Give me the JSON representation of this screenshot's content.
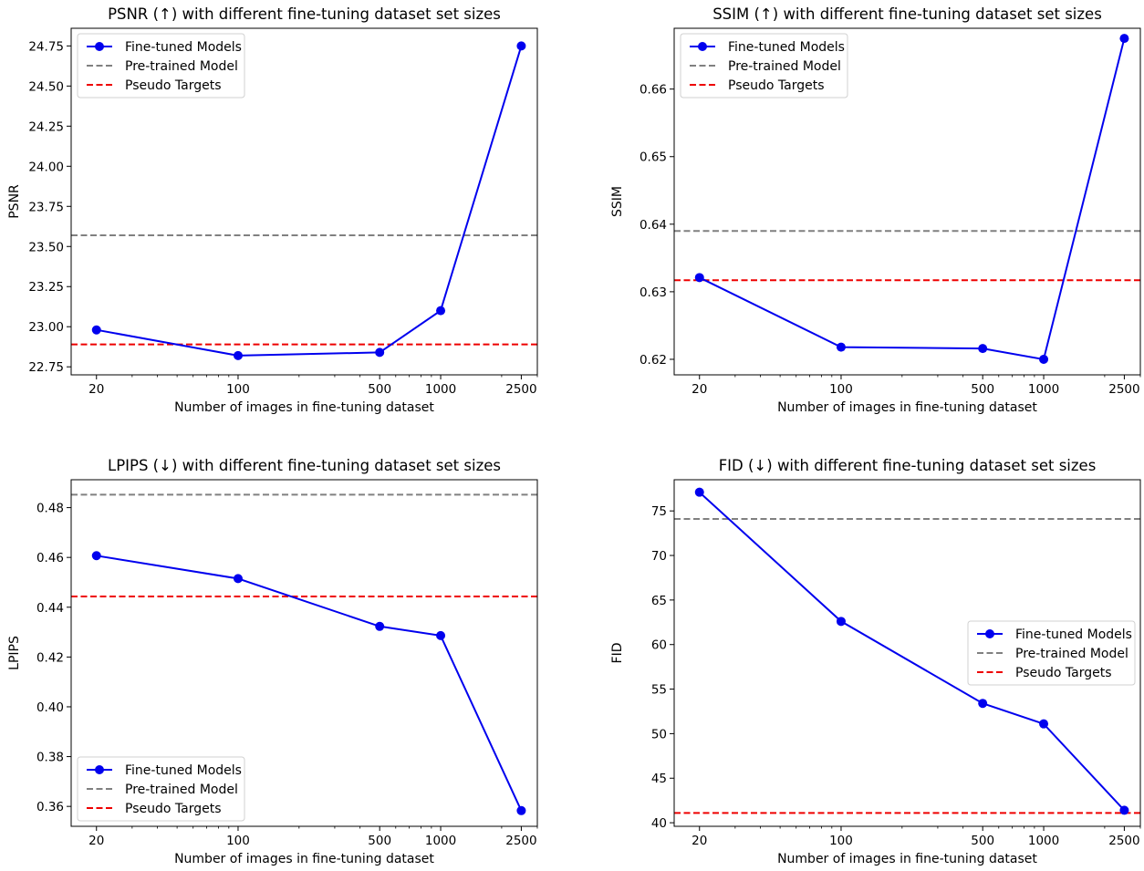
{
  "x_values": [
    20,
    100,
    500,
    1000,
    2500
  ],
  "x_tick_labels": [
    "20",
    "100",
    "500",
    "1000",
    "2500"
  ],
  "legend_labels": [
    "Fine-tuned Models",
    "Pre-trained Model",
    "Pseudo Targets"
  ],
  "colors": {
    "fine_tuned": "#0000ee",
    "pretrained": "#808080",
    "pseudo": "#ee0000"
  },
  "chart_data": [
    {
      "type": "line",
      "title": "PSNR (↑) with different fine-tuning dataset set sizes",
      "xlabel": "Number of images in fine-tuning dataset",
      "ylabel": "PSNR",
      "xscale": "log",
      "xlim": [
        15,
        3000
      ],
      "ylim": [
        22.7,
        24.86
      ],
      "yticks": [
        22.75,
        23.0,
        23.25,
        23.5,
        23.75,
        24.0,
        24.25,
        24.5,
        24.75
      ],
      "ytick_decimals": 2,
      "series": [
        {
          "name": "Fine-tuned Models",
          "x": [
            20,
            100,
            500,
            1000,
            2500
          ],
          "values": [
            22.98,
            22.82,
            22.84,
            23.1,
            24.75
          ]
        }
      ],
      "hlines": [
        {
          "name": "Pre-trained Model",
          "value": 23.57
        },
        {
          "name": "Pseudo Targets",
          "value": 22.89
        }
      ],
      "legend": "upper-left"
    },
    {
      "type": "line",
      "title": "SSIM (↑) with different fine-tuning dataset set sizes",
      "xlabel": "Number of images in fine-tuning dataset",
      "ylabel": "SSIM",
      "xscale": "log",
      "xlim": [
        15,
        3000
      ],
      "ylim": [
        0.6177,
        0.669
      ],
      "yticks": [
        0.62,
        0.63,
        0.64,
        0.65,
        0.66
      ],
      "ytick_decimals": 2,
      "series": [
        {
          "name": "Fine-tuned Models",
          "x": [
            20,
            100,
            500,
            1000,
            2500
          ],
          "values": [
            0.6321,
            0.6218,
            0.6216,
            0.62,
            0.6675
          ]
        }
      ],
      "hlines": [
        {
          "name": "Pre-trained Model",
          "value": 0.639
        },
        {
          "name": "Pseudo Targets",
          "value": 0.6317
        }
      ],
      "legend": "upper-left"
    },
    {
      "type": "line",
      "title": "LPIPS (↓) with different fine-tuning dataset set sizes",
      "xlabel": "Number of images in fine-tuning dataset",
      "ylabel": "LPIPS",
      "xscale": "log",
      "xlim": [
        15,
        3000
      ],
      "ylim": [
        0.352,
        0.4912
      ],
      "yticks": [
        0.36,
        0.38,
        0.4,
        0.42,
        0.44,
        0.46,
        0.48
      ],
      "ytick_decimals": 2,
      "series": [
        {
          "name": "Fine-tuned Models",
          "x": [
            20,
            100,
            500,
            1000,
            2500
          ],
          "values": [
            0.4607,
            0.4515,
            0.4323,
            0.4286,
            0.3583
          ]
        }
      ],
      "hlines": [
        {
          "name": "Pre-trained Model",
          "value": 0.4852
        },
        {
          "name": "Pseudo Targets",
          "value": 0.4443
        }
      ],
      "legend": "lower-left"
    },
    {
      "type": "line",
      "title": "FID (↓) with different fine-tuning dataset set sizes",
      "xlabel": "Number of images in fine-tuning dataset",
      "ylabel": "FID",
      "xscale": "log",
      "xlim": [
        15,
        3000
      ],
      "ylim": [
        39.6,
        78.5
      ],
      "yticks": [
        40,
        45,
        50,
        55,
        60,
        65,
        70,
        75
      ],
      "ytick_decimals": 0,
      "series": [
        {
          "name": "Fine-tuned Models",
          "x": [
            20,
            100,
            500,
            1000,
            2500
          ],
          "values": [
            77.1,
            62.6,
            53.4,
            51.1,
            41.4
          ]
        }
      ],
      "hlines": [
        {
          "name": "Pre-trained Model",
          "value": 74.1
        },
        {
          "name": "Pseudo Targets",
          "value": 41.1
        }
      ],
      "legend": "center-right"
    }
  ]
}
